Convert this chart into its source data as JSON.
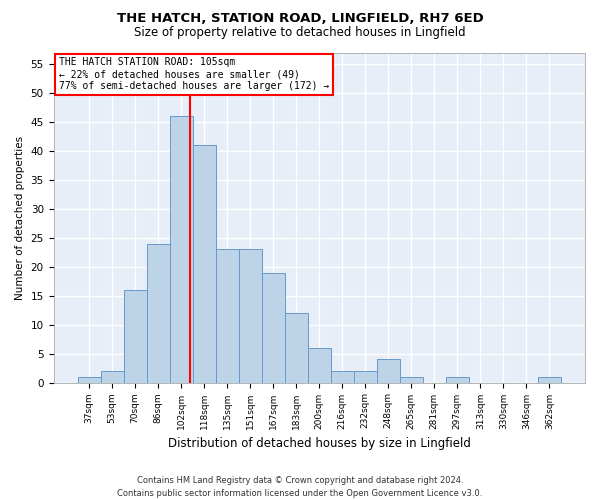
{
  "title1": "THE HATCH, STATION ROAD, LINGFIELD, RH7 6ED",
  "title2": "Size of property relative to detached houses in Lingfield",
  "xlabel": "Distribution of detached houses by size in Lingfield",
  "ylabel": "Number of detached properties",
  "categories": [
    "37sqm",
    "53sqm",
    "70sqm",
    "86sqm",
    "102sqm",
    "118sqm",
    "135sqm",
    "151sqm",
    "167sqm",
    "183sqm",
    "200sqm",
    "216sqm",
    "232sqm",
    "248sqm",
    "265sqm",
    "281sqm",
    "297sqm",
    "313sqm",
    "330sqm",
    "346sqm",
    "362sqm"
  ],
  "values": [
    1,
    2,
    16,
    24,
    46,
    41,
    23,
    23,
    19,
    12,
    6,
    2,
    2,
    4,
    1,
    0,
    1,
    0,
    0,
    0,
    1
  ],
  "bar_color": "#bdd4e8",
  "bar_edge_color": "#6699cc",
  "red_line_index": 4.38,
  "ylim": [
    0,
    57
  ],
  "yticks": [
    0,
    5,
    10,
    15,
    20,
    25,
    30,
    35,
    40,
    45,
    50,
    55
  ],
  "annotation_title": "THE HATCH STATION ROAD: 105sqm",
  "annotation_line1": "← 22% of detached houses are smaller (49)",
  "annotation_line2": "77% of semi-detached houses are larger (172) →",
  "footer1": "Contains HM Land Registry data © Crown copyright and database right 2024.",
  "footer2": "Contains public sector information licensed under the Open Government Licence v3.0.",
  "bg_color": "#e8eef8",
  "grid_color": "#ffffff"
}
